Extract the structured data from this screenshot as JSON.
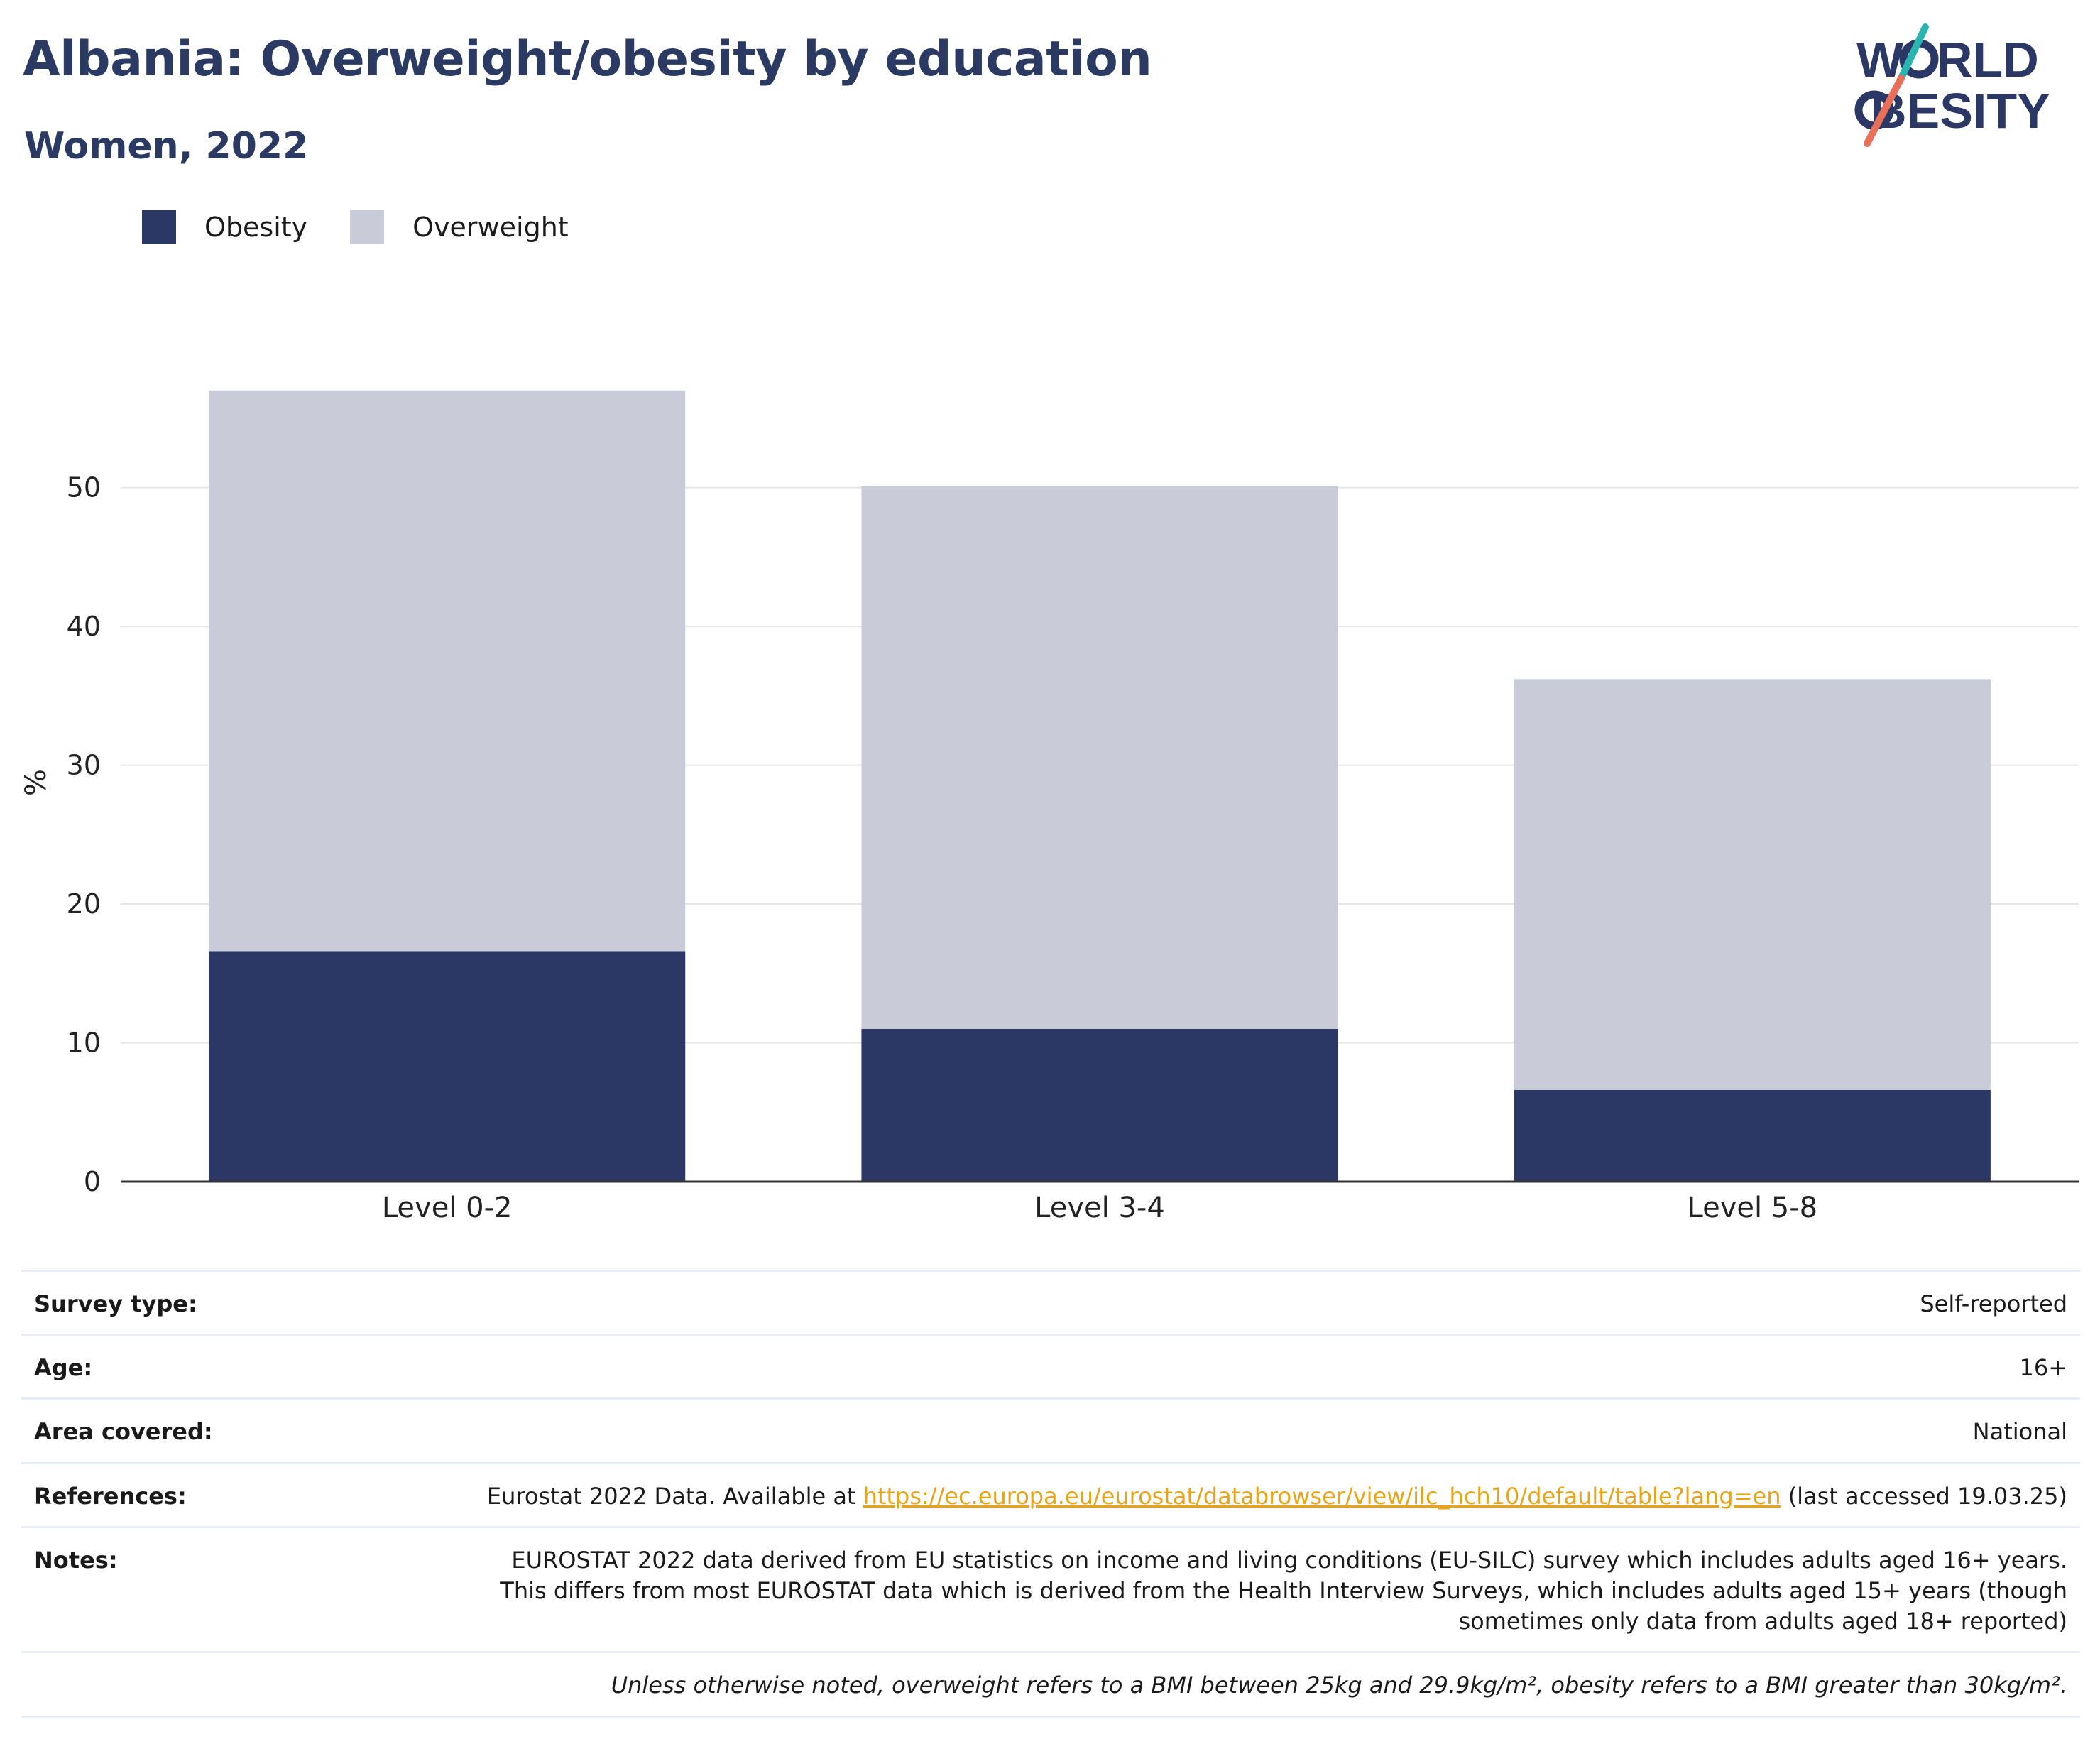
{
  "header": {
    "title": "Albania: Overweight/obesity by education",
    "subtitle": "Women, 2022",
    "logo_text": "WORLD OBESITY"
  },
  "colors": {
    "obesity": "#2b3765",
    "overweight": "#c9ccd8",
    "title": "#2b3a63",
    "link": "#e8a317",
    "grid": "#e6e6e6",
    "axis": "#333333"
  },
  "legend": {
    "items": [
      {
        "label": "Obesity",
        "color": "#2b3765"
      },
      {
        "label": "Overweight",
        "color": "#c9ccd8"
      }
    ]
  },
  "chart_data": {
    "type": "bar",
    "stacked": true,
    "categories": [
      "Level 0-2",
      "Level 3-4",
      "Level 5-8"
    ],
    "series": [
      {
        "name": "Obesity",
        "values": [
          16.6,
          11.0,
          6.6
        ]
      },
      {
        "name": "Overweight",
        "values": [
          40.4,
          39.1,
          29.6
        ]
      }
    ],
    "ylabel": "%",
    "xlabel": "",
    "ylim": [
      0,
      57.5
    ],
    "yticks": [
      0,
      10,
      20,
      30,
      40,
      50
    ],
    "grid": true,
    "legend_position": "top-left"
  },
  "meta": {
    "survey_type": {
      "key": "Survey type:",
      "value": "Self-reported"
    },
    "age": {
      "key": "Age:",
      "value": "16+"
    },
    "area": {
      "key": "Area covered:",
      "value": "National"
    },
    "references": {
      "key": "References:",
      "prefix": "Eurostat 2022 Data. Available at ",
      "link": "https://ec.europa.eu/eurostat/databrowser/view/ilc_hch10/default/table?lang=en",
      "suffix": " (last accessed 19.03.25)"
    },
    "notes": {
      "key": "Notes:",
      "value": "EUROSTAT 2022 data derived from EU statistics on income and living conditions (EU-SILC) survey which includes adults aged 16+ years. This differs from most EUROSTAT data which is derived from the Health Interview Surveys, which includes adults aged 15+ years (though sometimes only data from adults aged 18+ reported)"
    },
    "footnote": "Unless otherwise noted, overweight refers to a BMI between 25kg and 29.9kg/m², obesity refers to a BMI greater than 30kg/m²."
  }
}
